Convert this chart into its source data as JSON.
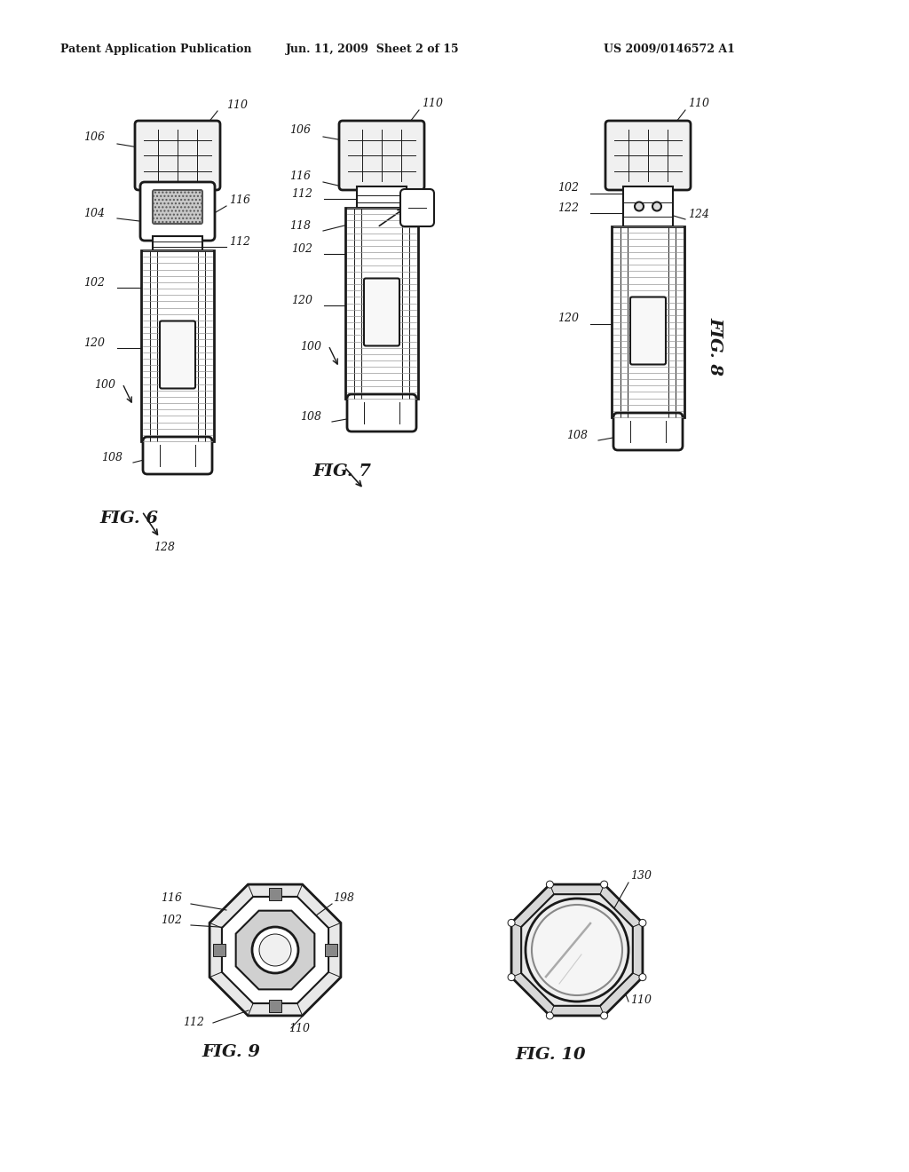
{
  "bg_color": "#ffffff",
  "header_left": "Patent Application Publication",
  "header_mid": "Jun. 11, 2009  Sheet 2 of 15",
  "header_right": "US 2009/0146572 A1",
  "line_color": "#1a1a1a",
  "lw_main": 1.5,
  "lw_thin": 0.7,
  "lw_thick": 2.0
}
